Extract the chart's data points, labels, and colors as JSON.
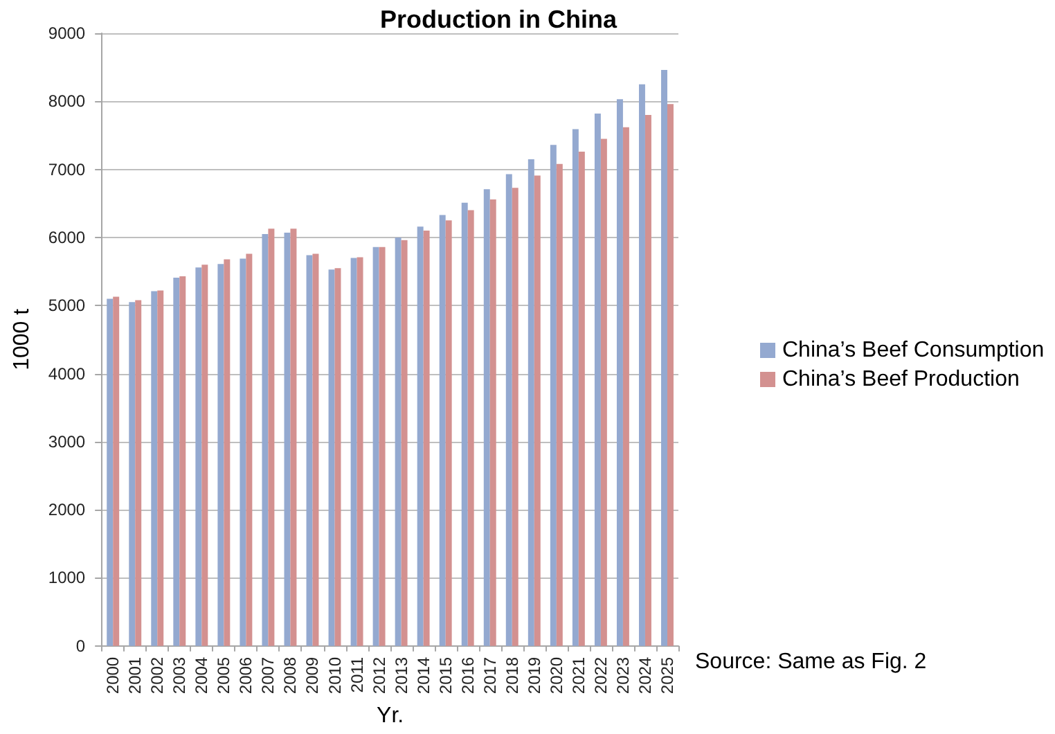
{
  "chart_data": {
    "type": "bar",
    "title": "Production in China",
    "xlabel": "Yr.",
    "ylabel": "1000 t",
    "categories": [
      "2000",
      "2001",
      "2002",
      "2003",
      "2004",
      "2005",
      "2006",
      "2007",
      "2008",
      "2009",
      "2010",
      "2011",
      "2012",
      "2013",
      "2014",
      "2015",
      "2016",
      "2017",
      "2018",
      "2019",
      "2020",
      "2021",
      "2022",
      "2023",
      "2024",
      "2025"
    ],
    "series": [
      {
        "name": "China’s Beef Consumption",
        "color": "#94a9d0",
        "values": [
          5100,
          5050,
          5210,
          5410,
          5560,
          5610,
          5690,
          6050,
          6070,
          5740,
          5530,
          5700,
          5860,
          6000,
          6160,
          6330,
          6510,
          6710,
          6930,
          7150,
          7360,
          7590,
          7820,
          8030,
          8250,
          8460
        ]
      },
      {
        "name": "China’s Beef Production",
        "color": "#d39190",
        "values": [
          5130,
          5080,
          5220,
          5430,
          5600,
          5680,
          5760,
          6130,
          6130,
          5760,
          5550,
          5710,
          5860,
          5960,
          6100,
          6250,
          6400,
          6560,
          6730,
          6910,
          7080,
          7260,
          7450,
          7620,
          7800,
          7960
        ]
      }
    ],
    "ylim": [
      0,
      9000
    ],
    "yticks": [
      0,
      1000,
      2000,
      3000,
      4000,
      5000,
      6000,
      7000,
      8000,
      9000
    ],
    "grid": "y",
    "legend": "right",
    "annotations": [
      "Source: Same as Fig. 2"
    ]
  }
}
